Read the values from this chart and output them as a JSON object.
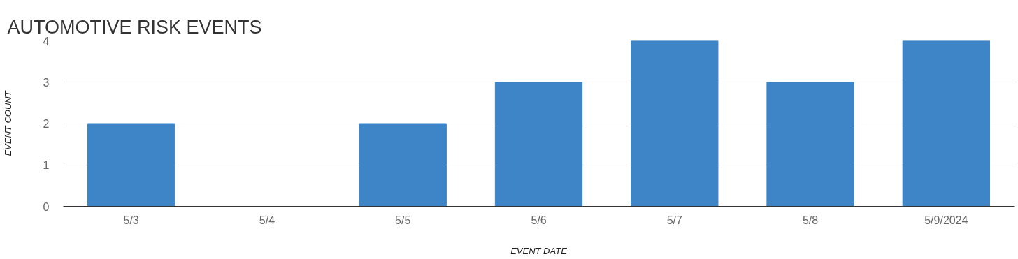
{
  "chart_data": {
    "type": "bar",
    "title": "AUTOMOTIVE RISK EVENTS",
    "xlabel": "EVENT DATE",
    "ylabel": "EVENT COUNT",
    "categories": [
      "5/3",
      "5/4",
      "5/5",
      "5/6",
      "5/7",
      "5/8",
      "5/9/2024"
    ],
    "values": [
      2,
      0,
      2,
      3,
      4,
      3,
      4
    ],
    "color": "#3d85c6",
    "ylim": [
      0,
      4
    ],
    "yticks": [
      0,
      1,
      2,
      3,
      4
    ],
    "grid": "y"
  }
}
